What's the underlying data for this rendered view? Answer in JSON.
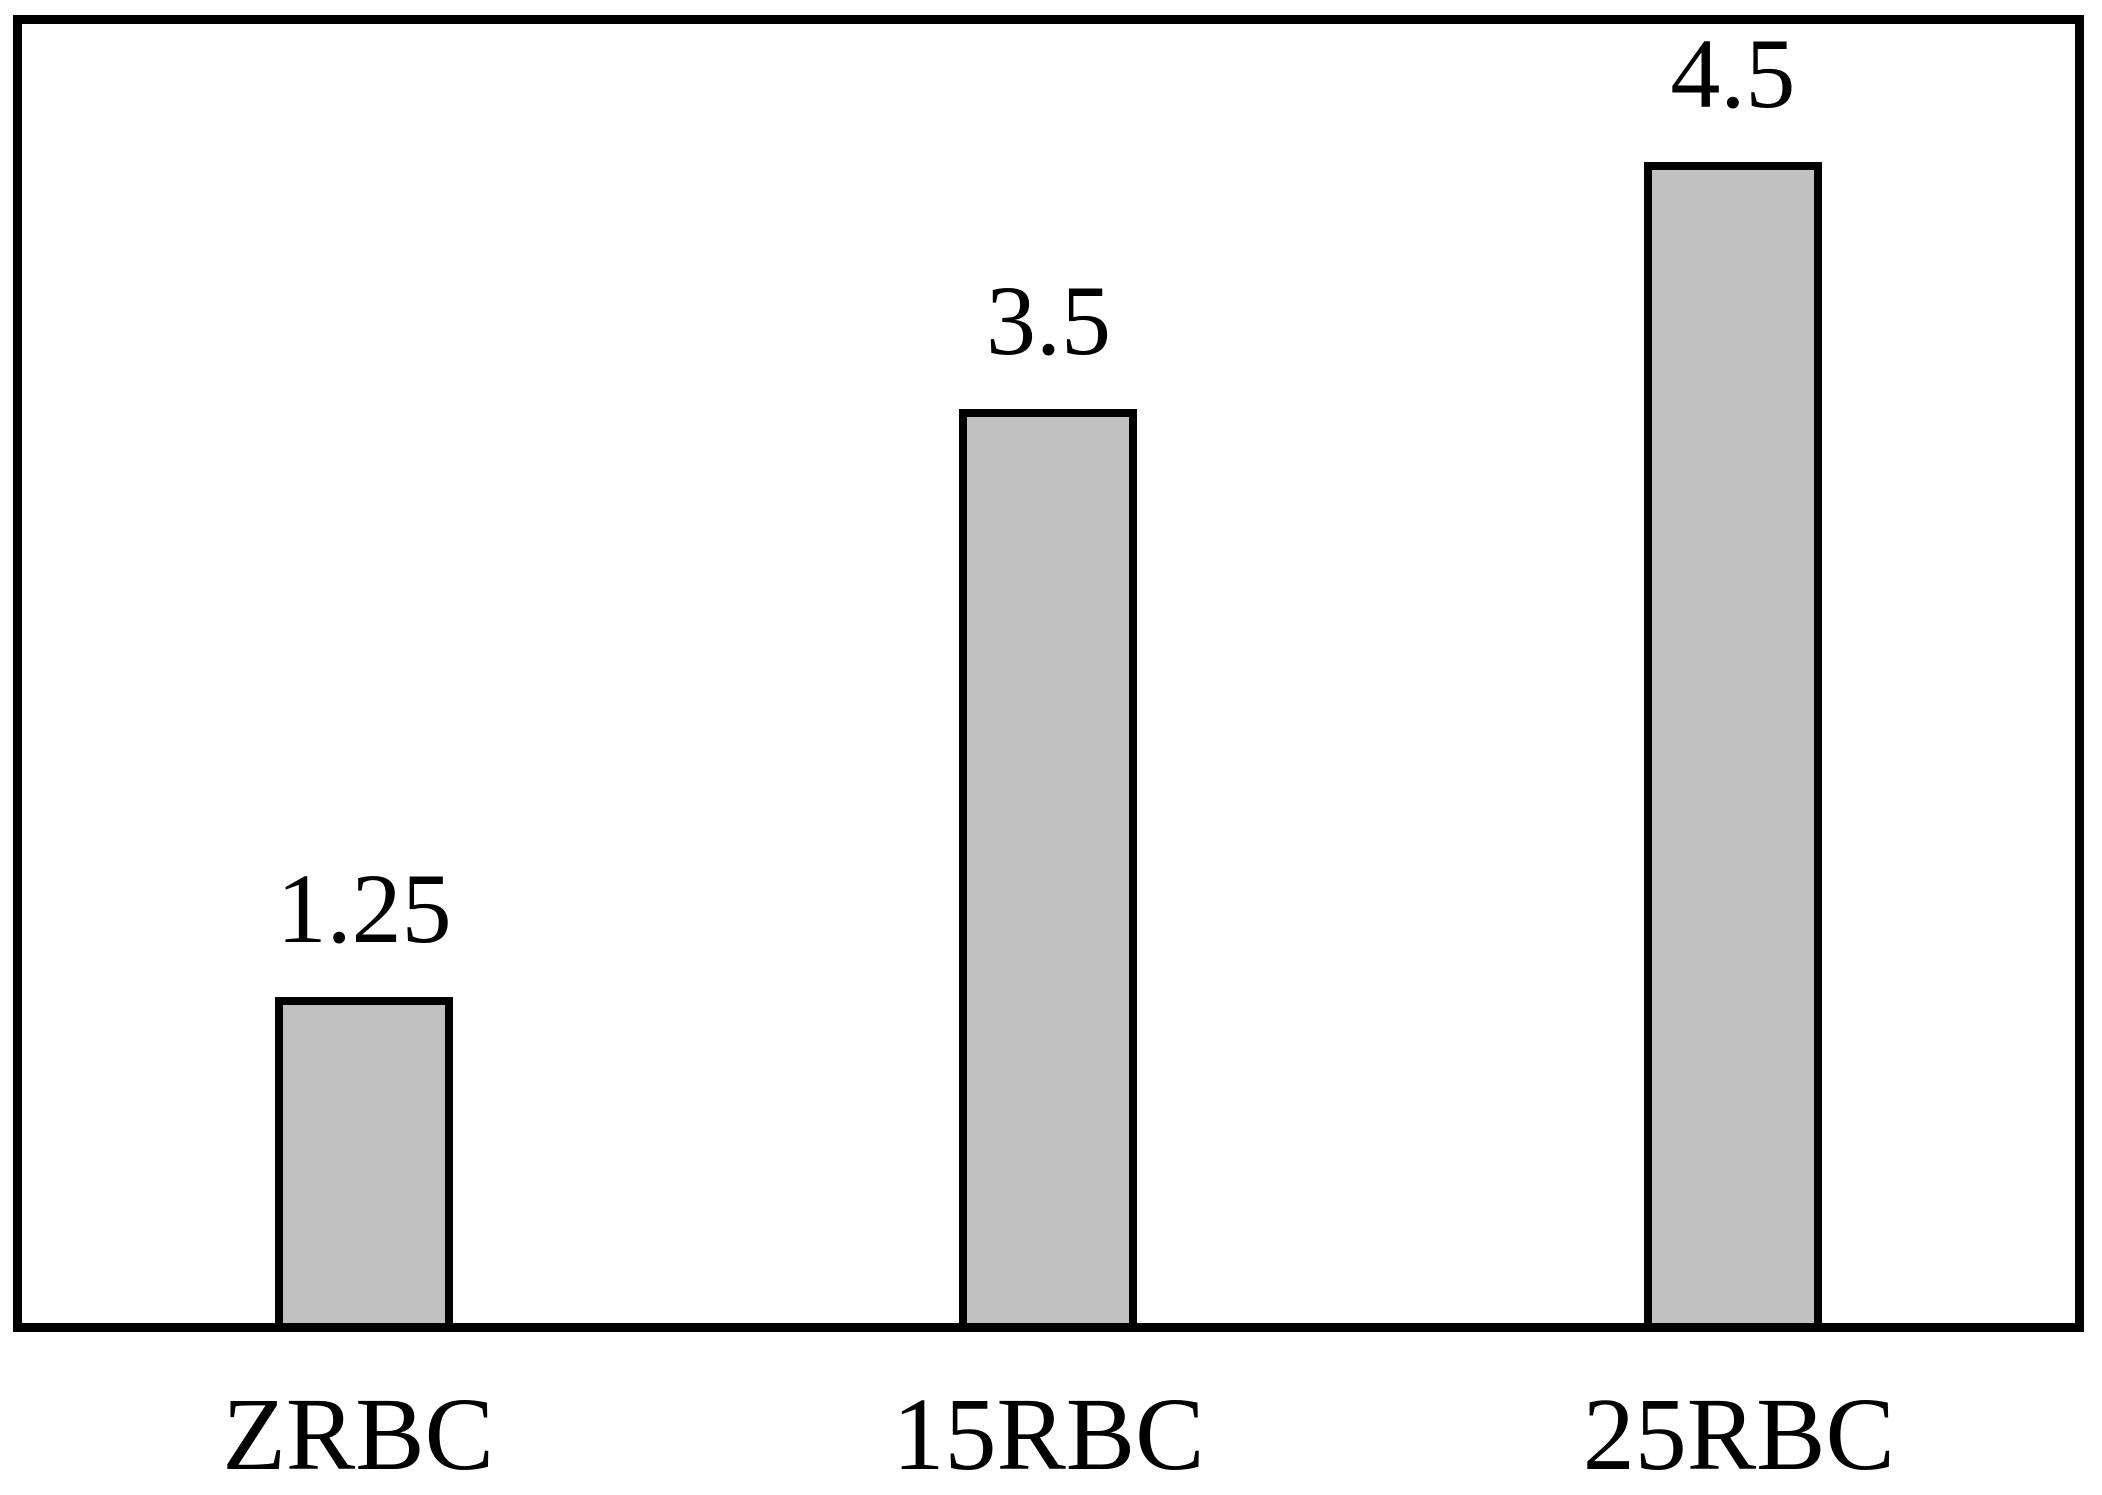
{
  "chart_data": {
    "type": "bar",
    "categories": [
      "ZRBC",
      "15RBC",
      "25RBC"
    ],
    "values": [
      1.25,
      3.5,
      4.5
    ],
    "value_labels": [
      "1.25",
      "3.5",
      "4.5"
    ],
    "title": "",
    "xlabel": "",
    "ylabel": "",
    "ylim": [
      0,
      5
    ],
    "grid": false,
    "legend": false,
    "axis_tick_marks": false,
    "data_labels_position": "above-bars",
    "colors": {
      "bar_fill": "#c1c1c1",
      "bar_border": "#000000",
      "frame_border": "#000000",
      "background": "#ffffff",
      "text": "#000000"
    }
  }
}
